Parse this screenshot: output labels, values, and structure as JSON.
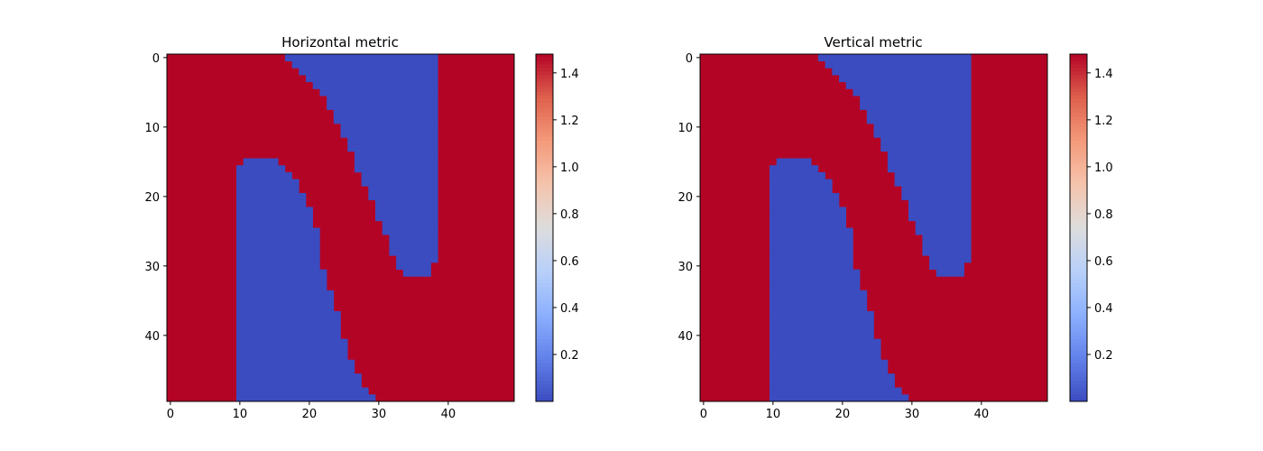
{
  "chart_data": [
    {
      "type": "heatmap",
      "title": "Horizontal metric",
      "colormap": "coolwarm",
      "grid": false,
      "shape": [
        50,
        50
      ],
      "xlim": [
        -0.5,
        49.5
      ],
      "ylim": [
        49.5,
        -0.5
      ],
      "x_ticks": [
        0,
        10,
        20,
        30,
        40
      ],
      "y_ticks": [
        0,
        10,
        20,
        30,
        40
      ],
      "value_low": 0.0,
      "value_high": 1.48,
      "colorbar": {
        "ticks": [
          0.2,
          0.4,
          0.6,
          0.8,
          1.0,
          1.2,
          1.4
        ],
        "tick_labels": [
          "0.2",
          "0.4",
          "0.6",
          "0.8",
          "1.0",
          "1.2",
          "1.4"
        ],
        "range": [
          0.0,
          1.48
        ]
      },
      "regions": {
        "upper_blue_left_boundary": [
          [
            0,
            17
          ],
          [
            1,
            18
          ],
          [
            2,
            19
          ],
          [
            3,
            20
          ],
          [
            4,
            21
          ],
          [
            5,
            22
          ],
          [
            6,
            23
          ],
          [
            7,
            23
          ],
          [
            8,
            24
          ],
          [
            9,
            24
          ],
          [
            10,
            25
          ],
          [
            11,
            25
          ],
          [
            12,
            26
          ],
          [
            13,
            26
          ],
          [
            14,
            27
          ],
          [
            15,
            27
          ],
          [
            16,
            27
          ],
          [
            17,
            28
          ],
          [
            18,
            28
          ],
          [
            19,
            29
          ],
          [
            20,
            29
          ],
          [
            21,
            30
          ],
          [
            22,
            30
          ],
          [
            23,
            30
          ],
          [
            24,
            31
          ],
          [
            25,
            31
          ],
          [
            26,
            32
          ],
          [
            27,
            32
          ],
          [
            28,
            32
          ],
          [
            29,
            33
          ],
          [
            30,
            33
          ],
          [
            31,
            34
          ]
        ],
        "upper_blue_right_col": [
          [
            0,
            38
          ],
          [
            29,
            38
          ],
          [
            30,
            37
          ],
          [
            31,
            37
          ]
        ],
        "lower_blue_top": [
          [
            15,
            11
          ],
          [
            16,
            10
          ],
          [
            17,
            10
          ]
        ],
        "lower_blue_right_boundary": [
          [
            15,
            15
          ],
          [
            16,
            16
          ],
          [
            17,
            17
          ],
          [
            18,
            18
          ],
          [
            19,
            18
          ],
          [
            20,
            19
          ],
          [
            21,
            19
          ],
          [
            22,
            20
          ],
          [
            23,
            20
          ],
          [
            24,
            20
          ],
          [
            25,
            21
          ],
          [
            26,
            21
          ],
          [
            27,
            21
          ],
          [
            28,
            21
          ],
          [
            29,
            21
          ],
          [
            30,
            21
          ],
          [
            31,
            22
          ],
          [
            32,
            22
          ],
          [
            33,
            22
          ],
          [
            34,
            23
          ],
          [
            35,
            23
          ],
          [
            36,
            23
          ],
          [
            37,
            24
          ],
          [
            38,
            24
          ],
          [
            39,
            24
          ],
          [
            40,
            24
          ],
          [
            41,
            25
          ],
          [
            42,
            25
          ],
          [
            43,
            25
          ],
          [
            44,
            26
          ],
          [
            45,
            26
          ],
          [
            46,
            27
          ],
          [
            47,
            27
          ],
          [
            48,
            28
          ],
          [
            49,
            29
          ]
        ]
      }
    },
    {
      "type": "heatmap",
      "title": "Vertical metric",
      "colormap": "coolwarm",
      "grid": false,
      "shape": [
        50,
        50
      ],
      "xlim": [
        -0.5,
        49.5
      ],
      "ylim": [
        49.5,
        -0.5
      ],
      "x_ticks": [
        0,
        10,
        20,
        30,
        40
      ],
      "y_ticks": [
        0,
        10,
        20,
        30,
        40
      ],
      "value_low": 0.0,
      "value_high": 1.48,
      "colorbar": {
        "ticks": [
          0.2,
          0.4,
          0.6,
          0.8,
          1.0,
          1.2,
          1.4
        ],
        "tick_labels": [
          "0.2",
          "0.4",
          "0.6",
          "0.8",
          "1.0",
          "1.2",
          "1.4"
        ],
        "range": [
          0.0,
          1.48
        ]
      },
      "regions": {
        "upper_blue_left_boundary": [
          [
            0,
            17
          ],
          [
            1,
            18
          ],
          [
            2,
            19
          ],
          [
            3,
            20
          ],
          [
            4,
            21
          ],
          [
            5,
            22
          ],
          [
            6,
            23
          ],
          [
            7,
            23
          ],
          [
            8,
            24
          ],
          [
            9,
            24
          ],
          [
            10,
            25
          ],
          [
            11,
            25
          ],
          [
            12,
            26
          ],
          [
            13,
            26
          ],
          [
            14,
            27
          ],
          [
            15,
            27
          ],
          [
            16,
            27
          ],
          [
            17,
            28
          ],
          [
            18,
            28
          ],
          [
            19,
            29
          ],
          [
            20,
            29
          ],
          [
            21,
            30
          ],
          [
            22,
            30
          ],
          [
            23,
            30
          ],
          [
            24,
            31
          ],
          [
            25,
            31
          ],
          [
            26,
            32
          ],
          [
            27,
            32
          ],
          [
            28,
            32
          ],
          [
            29,
            33
          ],
          [
            30,
            33
          ],
          [
            31,
            34
          ]
        ],
        "upper_blue_right_col": [
          [
            0,
            38
          ],
          [
            29,
            38
          ],
          [
            30,
            37
          ],
          [
            31,
            37
          ]
        ],
        "lower_blue_top": [
          [
            15,
            11
          ],
          [
            16,
            10
          ],
          [
            17,
            10
          ]
        ],
        "lower_blue_right_boundary": [
          [
            15,
            15
          ],
          [
            16,
            16
          ],
          [
            17,
            17
          ],
          [
            18,
            18
          ],
          [
            19,
            18
          ],
          [
            20,
            19
          ],
          [
            21,
            19
          ],
          [
            22,
            20
          ],
          [
            23,
            20
          ],
          [
            24,
            20
          ],
          [
            25,
            21
          ],
          [
            26,
            21
          ],
          [
            27,
            21
          ],
          [
            28,
            21
          ],
          [
            29,
            21
          ],
          [
            30,
            21
          ],
          [
            31,
            22
          ],
          [
            32,
            22
          ],
          [
            33,
            22
          ],
          [
            34,
            23
          ],
          [
            35,
            23
          ],
          [
            36,
            23
          ],
          [
            37,
            24
          ],
          [
            38,
            24
          ],
          [
            39,
            24
          ],
          [
            40,
            24
          ],
          [
            41,
            25
          ],
          [
            42,
            25
          ],
          [
            43,
            25
          ],
          [
            44,
            26
          ],
          [
            45,
            26
          ],
          [
            46,
            27
          ],
          [
            47,
            27
          ],
          [
            48,
            28
          ],
          [
            49,
            29
          ]
        ]
      }
    }
  ],
  "colors": {
    "high": "#b40426",
    "low": "#3b4cc0"
  }
}
